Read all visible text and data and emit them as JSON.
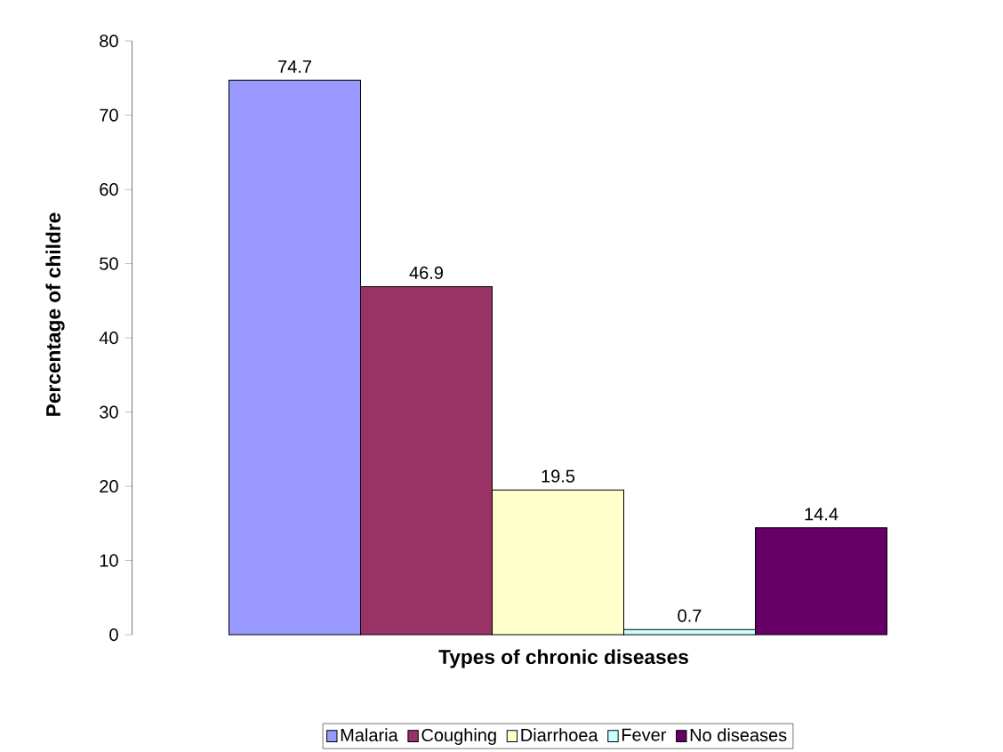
{
  "chart_data": {
    "type": "bar",
    "xlabel": "Types of chronic diseases",
    "ylabel": "Percentage of childre",
    "categories": [
      null
    ],
    "series": [
      {
        "name": "Malaria",
        "color": "#9999ff",
        "values": [
          74.7
        ]
      },
      {
        "name": "Coughing",
        "color": "#993366",
        "values": [
          46.9
        ]
      },
      {
        "name": "Diarrhoea",
        "color": "#ffffcc",
        "values": [
          19.5
        ]
      },
      {
        "name": "Fever",
        "color": "#ccffff",
        "values": [
          0.7
        ]
      },
      {
        "name": "No diseases",
        "color": "#660066",
        "values": [
          14.4
        ]
      }
    ],
    "ylim": [
      0,
      80
    ],
    "yticks": [
      0,
      10,
      20,
      30,
      40,
      50,
      60,
      70,
      80
    ],
    "data_labels": true,
    "legend": "bottom"
  }
}
